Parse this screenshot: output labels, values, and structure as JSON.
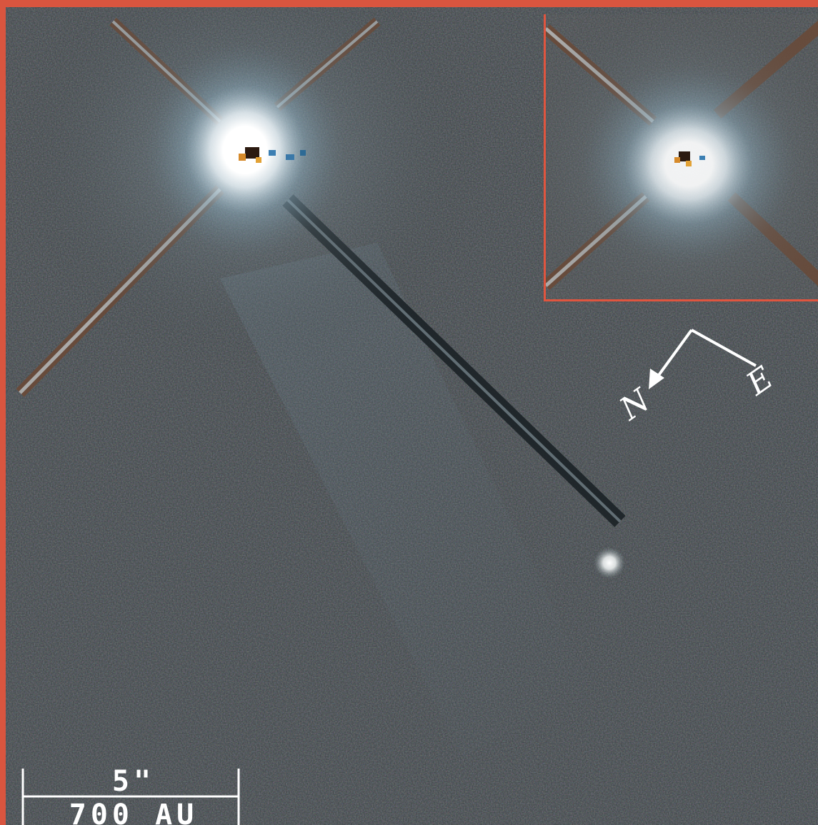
{
  "image": {
    "description_kind": "astronomical coronagraph image",
    "colors": {
      "frame_border": "#d9553f",
      "background": "#3d4446",
      "glow": "#ffffff",
      "overlay_text": "#ffffff"
    }
  },
  "compass": {
    "north_label": "N",
    "east_label": "E"
  },
  "scalebar": {
    "angular_label": "5\"",
    "distance_label": "700 AU"
  }
}
